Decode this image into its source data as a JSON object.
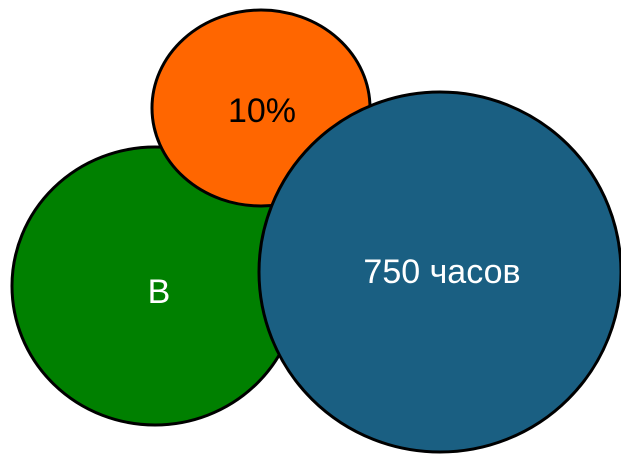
{
  "bubbles": [
    {
      "id": "bubble-green",
      "label": "B",
      "fill": "#008000",
      "text_color": "#ffffff"
    },
    {
      "id": "bubble-orange",
      "label": "10%",
      "fill": "#ff6600",
      "text_color": "#000000"
    },
    {
      "id": "bubble-blue",
      "label": "750 часов",
      "fill": "#1a5f82",
      "text_color": "#ffffff"
    }
  ]
}
